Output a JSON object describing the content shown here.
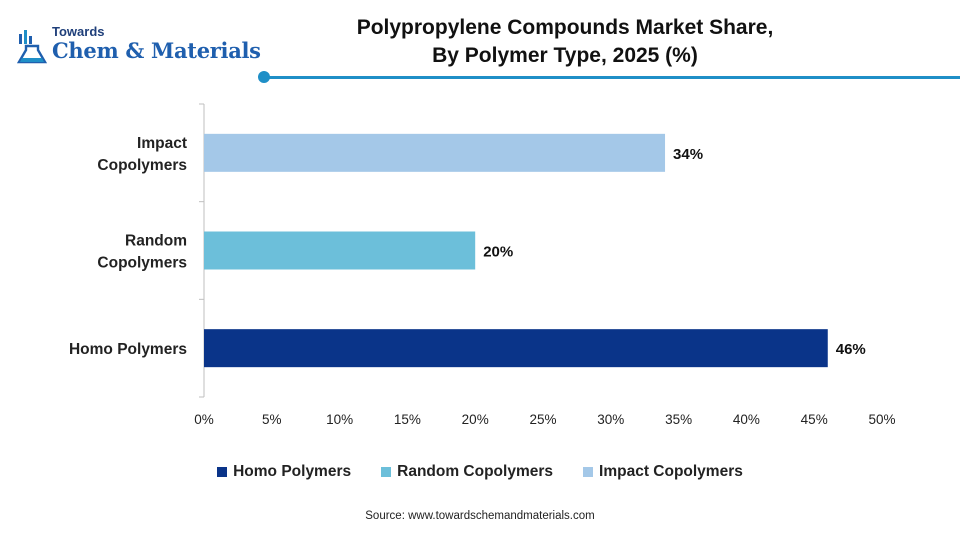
{
  "brand": {
    "line1": "Towards",
    "line2": "Chem & Materials"
  },
  "header": {
    "title_line1": "Polypropylene Compounds Market Share,",
    "title_line2": "By Polymer Type, 2025 (%)"
  },
  "colors": {
    "accent": "#1f8fc7",
    "brand": "#1f5fae"
  },
  "chart_data": {
    "type": "bar",
    "orientation": "horizontal",
    "title": "Polypropylene Compounds Market Share, By Polymer Type, 2025 (%)",
    "categories": [
      {
        "label_lines": [
          "Impact",
          "Copolymers"
        ],
        "name": "Impact Copolymers",
        "value": 34,
        "value_label": "34%",
        "color": "#a4c8e8"
      },
      {
        "label_lines": [
          "Random",
          "Copolymers"
        ],
        "name": "Random Copolymers",
        "value": 20,
        "value_label": "20%",
        "color": "#6cbfda"
      },
      {
        "label_lines": [
          "Homo Polymers"
        ],
        "name": "Homo Polymers",
        "value": 46,
        "value_label": "46%",
        "color": "#0a3489"
      }
    ],
    "xlim": [
      0,
      50
    ],
    "xticks": [
      "0%",
      "5%",
      "10%",
      "15%",
      "20%",
      "25%",
      "30%",
      "35%",
      "40%",
      "45%",
      "50%"
    ],
    "grid": false,
    "legend_position": "bottom",
    "legend": [
      {
        "label": "Homo Polymers",
        "color": "#0a3489"
      },
      {
        "label": "Random Copolymers",
        "color": "#6cbfda"
      },
      {
        "label": "Impact Copolymers",
        "color": "#a4c8e8"
      }
    ]
  },
  "source": "Source: www.towardschemandmaterials.com"
}
